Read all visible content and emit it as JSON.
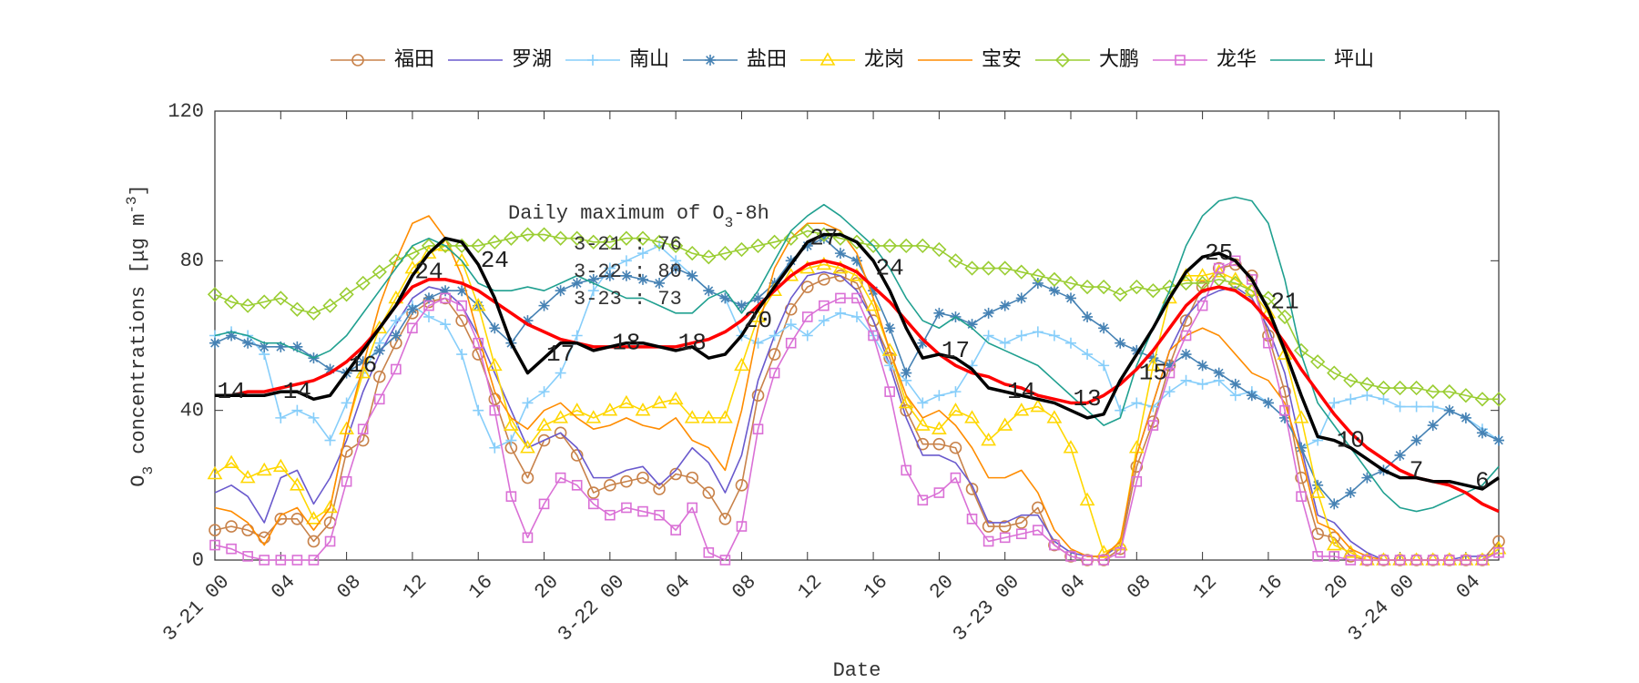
{
  "chart_data": {
    "type": "line",
    "xlabel": "Date",
    "ylabel_parts": [
      "O",
      "3",
      " concentrations [μg m",
      "-3",
      "]"
    ],
    "xlim": [
      0,
      78
    ],
    "ylim": [
      0,
      120
    ],
    "yticks": [
      0,
      40,
      80,
      120
    ],
    "xticks": [
      {
        "value": 0,
        "label": "3-21 00"
      },
      {
        "value": 4,
        "label": "04"
      },
      {
        "value": 8,
        "label": "08"
      },
      12,
      16,
      20,
      {
        "value": 24,
        "label": "3-22 00"
      },
      {
        "value": 28,
        "label": "04"
      },
      {
        "value": 32,
        "label": "08"
      },
      {
        "value": 36,
        "label": "12"
      },
      {
        "value": 40,
        "label": "16"
      },
      {
        "value": 44,
        "label": "20"
      },
      {
        "value": 48,
        "label": "3-23 00"
      },
      {
        "value": 52,
        "label": "04"
      },
      {
        "value": 56,
        "label": "08"
      },
      {
        "value": 60,
        "label": "12"
      },
      {
        "value": 64,
        "label": "16"
      },
      {
        "value": 68,
        "label": "20"
      },
      {
        "value": 72,
        "label": "3-24 00"
      },
      {
        "value": 76,
        "label": "04"
      }
    ],
    "legend": "top-outside",
    "x": [
      0,
      1,
      2,
      3,
      4,
      5,
      6,
      7,
      8,
      9,
      10,
      11,
      12,
      13,
      14,
      15,
      16,
      17,
      18,
      19,
      20,
      21,
      22,
      23,
      24,
      25,
      26,
      27,
      28,
      29,
      30,
      31,
      32,
      33,
      34,
      35,
      36,
      37,
      38,
      39,
      40,
      41,
      42,
      43,
      44,
      45,
      46,
      47,
      48,
      49,
      50,
      51,
      52,
      53,
      54,
      55,
      56,
      57,
      58,
      59,
      60,
      61,
      62,
      63,
      64,
      65,
      66,
      67,
      68,
      69,
      70,
      71,
      72,
      73,
      74,
      75,
      76,
      77,
      78
    ],
    "series": [
      {
        "name": "福田",
        "color": "#c8824a",
        "marker": "o",
        "values": [
          8,
          9,
          8,
          6,
          11,
          11,
          5,
          10,
          29,
          32,
          49,
          58,
          66,
          69,
          70,
          64,
          55,
          43,
          30,
          22,
          32,
          34,
          28,
          18,
          20,
          21,
          22,
          19,
          23,
          22,
          18,
          11,
          20,
          44,
          55,
          67,
          73,
          75,
          76,
          74,
          64,
          54,
          40,
          31,
          31,
          30,
          19,
          9,
          9,
          10,
          14,
          4,
          1,
          0,
          0,
          3,
          25,
          37,
          52,
          64,
          73,
          78,
          79,
          76,
          60,
          45,
          22,
          7,
          6,
          1,
          0,
          0,
          0,
          0,
          0,
          0,
          0,
          0,
          5
        ]
      },
      {
        "name": "罗湖",
        "color": "#6a5acd",
        "values": [
          18,
          20,
          17,
          10,
          22,
          24,
          15,
          22,
          32,
          45,
          55,
          63,
          70,
          73,
          72,
          68,
          60,
          50,
          40,
          30,
          32,
          34,
          30,
          22,
          22,
          24,
          25,
          20,
          24,
          30,
          26,
          18,
          28,
          48,
          60,
          70,
          76,
          77,
          76,
          72,
          64,
          52,
          38,
          28,
          28,
          26,
          20,
          10,
          10,
          12,
          12,
          5,
          2,
          1,
          1,
          4,
          28,
          42,
          56,
          65,
          70,
          72,
          73,
          70,
          62,
          50,
          30,
          12,
          10,
          5,
          2,
          0,
          0,
          0,
          0,
          0,
          1,
          1,
          2
        ]
      },
      {
        "name": "南山",
        "color": "#87cefa",
        "marker": "+",
        "values": [
          60,
          61,
          60,
          55,
          38,
          40,
          38,
          32,
          42,
          50,
          58,
          64,
          68,
          65,
          63,
          55,
          40,
          30,
          32,
          42,
          45,
          50,
          60,
          72,
          78,
          80,
          82,
          84,
          80,
          76,
          72,
          70,
          60,
          58,
          60,
          63,
          60,
          64,
          66,
          65,
          60,
          52,
          48,
          42,
          44,
          45,
          52,
          60,
          58,
          60,
          61,
          60,
          58,
          55,
          52,
          40,
          42,
          41,
          45,
          48,
          47,
          48,
          44,
          45,
          42,
          38,
          30,
          32,
          42,
          43,
          44,
          43,
          41,
          41,
          41,
          40,
          38,
          35,
          32
        ]
      },
      {
        "name": "盐田",
        "color": "#4682b4",
        "marker": "*",
        "values": [
          58,
          60,
          58,
          57,
          57,
          57,
          54,
          51,
          50,
          53,
          56,
          60,
          67,
          70,
          72,
          72,
          68,
          62,
          58,
          64,
          68,
          72,
          74,
          75,
          76,
          76,
          75,
          74,
          78,
          76,
          72,
          70,
          68,
          70,
          74,
          80,
          84,
          86,
          82,
          80,
          72,
          62,
          50,
          58,
          66,
          65,
          63,
          66,
          68,
          70,
          74,
          72,
          70,
          65,
          62,
          58,
          56,
          54,
          52,
          55,
          52,
          50,
          47,
          44,
          42,
          38,
          30,
          20,
          15,
          18,
          22,
          24,
          28,
          32,
          36,
          40,
          38,
          34,
          32
        ]
      },
      {
        "name": "龙岗",
        "color": "#ffd700",
        "marker": "^",
        "values": [
          23,
          26,
          22,
          24,
          25,
          20,
          11,
          14,
          35,
          50,
          62,
          70,
          78,
          82,
          84,
          80,
          68,
          52,
          36,
          30,
          36,
          38,
          40,
          38,
          40,
          42,
          40,
          42,
          43,
          38,
          38,
          38,
          52,
          65,
          72,
          76,
          78,
          79,
          78,
          76,
          68,
          56,
          42,
          36,
          35,
          40,
          38,
          32,
          36,
          40,
          41,
          38,
          30,
          16,
          2,
          4,
          30,
          52,
          70,
          76,
          76,
          77,
          75,
          72,
          66,
          55,
          38,
          18,
          4,
          2,
          0,
          0,
          0,
          0,
          0,
          0,
          0,
          0,
          3
        ]
      },
      {
        "name": "宝安",
        "color": "#ff8c00",
        "values": [
          14,
          13,
          10,
          4,
          12,
          14,
          8,
          14,
          35,
          52,
          68,
          80,
          90,
          92,
          86,
          76,
          60,
          45,
          38,
          35,
          40,
          42,
          38,
          35,
          36,
          38,
          36,
          35,
          38,
          32,
          30,
          24,
          40,
          62,
          78,
          86,
          90,
          90,
          88,
          82,
          70,
          56,
          44,
          38,
          40,
          36,
          30,
          22,
          22,
          24,
          18,
          8,
          3,
          1,
          1,
          5,
          28,
          42,
          56,
          60,
          62,
          60,
          55,
          50,
          48,
          42,
          28,
          10,
          8,
          3,
          1,
          0,
          0,
          0,
          0,
          0,
          0,
          0,
          2
        ]
      },
      {
        "name": "大鹏",
        "color": "#9acd32",
        "marker": "d",
        "values": [
          71,
          69,
          68,
          69,
          70,
          67,
          66,
          68,
          71,
          74,
          77,
          80,
          82,
          84,
          84,
          84,
          84,
          85,
          86,
          87,
          87,
          86,
          86,
          85,
          85,
          86,
          86,
          85,
          84,
          82,
          81,
          82,
          83,
          84,
          85,
          86,
          88,
          87,
          86,
          85,
          84,
          84,
          84,
          84,
          83,
          80,
          78,
          78,
          78,
          77,
          76,
          75,
          74,
          73,
          73,
          71,
          73,
          72,
          73,
          74,
          74,
          75,
          74,
          72,
          70,
          65,
          56,
          53,
          50,
          48,
          47,
          46,
          46,
          46,
          45,
          45,
          44,
          43,
          43
        ]
      },
      {
        "name": "龙华",
        "color": "#da70d6",
        "marker": "s",
        "values": [
          4,
          3,
          1,
          0,
          0,
          0,
          0,
          5,
          21,
          35,
          43,
          51,
          62,
          68,
          70,
          68,
          58,
          40,
          17,
          6,
          15,
          22,
          20,
          15,
          12,
          14,
          13,
          12,
          8,
          14,
          2,
          0,
          9,
          35,
          50,
          58,
          65,
          68,
          70,
          70,
          60,
          45,
          24,
          16,
          18,
          22,
          11,
          5,
          6,
          7,
          8,
          4,
          1,
          0,
          0,
          2,
          21,
          36,
          50,
          60,
          68,
          78,
          80,
          75,
          58,
          40,
          17,
          1,
          1,
          0,
          0,
          0,
          0,
          0,
          0,
          0,
          0,
          0,
          2
        ]
      },
      {
        "name": "坪山",
        "color": "#20a090",
        "values": [
          60,
          61,
          60,
          58,
          58,
          56,
          54,
          56,
          60,
          66,
          72,
          78,
          84,
          86,
          84,
          80,
          74,
          72,
          72,
          73,
          72,
          74,
          76,
          74,
          72,
          70,
          70,
          68,
          66,
          66,
          70,
          72,
          66,
          72,
          80,
          88,
          92,
          95,
          92,
          88,
          84,
          78,
          70,
          64,
          62,
          65,
          62,
          58,
          56,
          54,
          52,
          48,
          44,
          40,
          36,
          38,
          52,
          62,
          72,
          84,
          92,
          96,
          97,
          96,
          90,
          75,
          55,
          42,
          36,
          30,
          24,
          18,
          14,
          13,
          14,
          16,
          18,
          20,
          25
        ]
      },
      {
        "color": "#ff0000",
        "line_width": 3.5,
        "values": [
          44,
          44,
          45,
          45,
          46,
          47,
          48,
          50,
          53,
          57,
          62,
          68,
          73,
          75,
          75,
          74,
          72,
          69,
          66,
          63,
          61,
          59,
          58,
          57,
          57,
          57,
          57,
          57,
          57,
          58,
          59,
          61,
          64,
          68,
          72,
          76,
          79,
          80,
          79,
          77,
          73,
          69,
          64,
          59,
          55,
          52,
          50,
          49,
          47,
          46,
          44,
          43,
          42,
          42,
          44,
          47,
          51,
          56,
          62,
          68,
          72,
          73,
          72,
          69,
          64,
          58,
          51,
          45,
          39,
          34,
          30,
          27,
          24,
          22,
          21,
          20,
          18,
          15,
          13
        ]
      },
      {
        "color": "#000000",
        "line_width": 3.5,
        "values": [
          44,
          44,
          44,
          44,
          45,
          45,
          43,
          44,
          50,
          56,
          62,
          68,
          76,
          82,
          86,
          85,
          79,
          70,
          58,
          50,
          54,
          58,
          58,
          56,
          57,
          58,
          58,
          57,
          56,
          57,
          54,
          55,
          60,
          67,
          73,
          79,
          85,
          87,
          87,
          85,
          80,
          72,
          62,
          54,
          55,
          54,
          51,
          46,
          45,
          44,
          43,
          42,
          40,
          38,
          39,
          48,
          55,
          62,
          70,
          77,
          81,
          82,
          80,
          75,
          67,
          56,
          44,
          33,
          32,
          30,
          27,
          24,
          22,
          22,
          21,
          21,
          20,
          19,
          22
        ]
      }
    ],
    "annotations": [
      {
        "x": 1,
        "y": 45,
        "text": "14"
      },
      {
        "x": 5,
        "y": 45,
        "text": "14"
      },
      {
        "x": 9,
        "y": 52,
        "text": "16"
      },
      {
        "x": 13,
        "y": 77,
        "text": "24"
      },
      {
        "x": 17,
        "y": 80,
        "text": "24"
      },
      {
        "x": 21,
        "y": 55,
        "text": "17"
      },
      {
        "x": 25,
        "y": 58,
        "text": "18"
      },
      {
        "x": 29,
        "y": 58,
        "text": "18"
      },
      {
        "x": 33,
        "y": 64,
        "text": "20"
      },
      {
        "x": 37,
        "y": 86,
        "text": "27"
      },
      {
        "x": 41,
        "y": 78,
        "text": "24"
      },
      {
        "x": 45,
        "y": 56,
        "text": "17"
      },
      {
        "x": 49,
        "y": 45,
        "text": "14"
      },
      {
        "x": 53,
        "y": 43,
        "text": "13"
      },
      {
        "x": 57,
        "y": 50,
        "text": "15"
      },
      {
        "x": 61,
        "y": 82,
        "text": "25"
      },
      {
        "x": 65,
        "y": 69,
        "text": "21"
      },
      {
        "x": 69,
        "y": 32,
        "text": "10"
      },
      {
        "x": 73,
        "y": 24,
        "text": "7"
      },
      {
        "x": 77,
        "y": 21,
        "text": "6"
      }
    ],
    "note": {
      "title_parts": [
        "Daily maximum of O",
        "3",
        "-8h"
      ],
      "lines": [
        "3-21 : 76",
        "3-22 : 80",
        "3-23 : 73"
      ]
    }
  }
}
